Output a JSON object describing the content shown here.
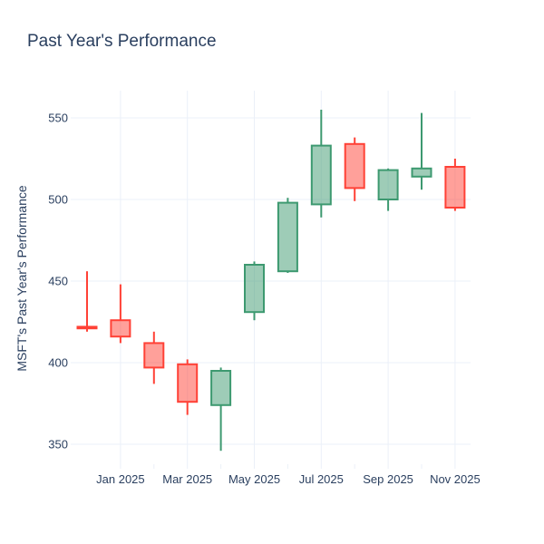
{
  "page": {
    "background_color": "#ffffff"
  },
  "chart_data": {
    "type": "candlestick",
    "title": "Past Year's Performance",
    "yaxis_title": "MSFT's Past Year's Performance",
    "xlabel": "",
    "ylabel": "MSFT's Past Year's Performance",
    "x_tick_labels": [
      "Jan 2025",
      "Mar 2025",
      "May 2025",
      "Jul 2025",
      "Sep 2025",
      "Nov 2025"
    ],
    "y_ticks": [
      350,
      400,
      450,
      500,
      550
    ],
    "ylim": [
      338,
      567
    ],
    "grid": true,
    "legend_position": "none",
    "colors": {
      "increasing": "#3D9970",
      "decreasing": "#FF4136",
      "grid": "#EBF0F8",
      "text": "#2a3f5f",
      "plot_background": "#ffffff"
    },
    "candles": [
      {
        "month": "Dec 2024",
        "open": 422,
        "high": 456,
        "low": 419,
        "close": 421
      },
      {
        "month": "Jan 2025",
        "open": 426,
        "high": 448,
        "low": 412,
        "close": 416
      },
      {
        "month": "Feb 2025",
        "open": 412,
        "high": 419,
        "low": 387,
        "close": 397
      },
      {
        "month": "Mar 2025",
        "open": 399,
        "high": 402,
        "low": 368,
        "close": 376
      },
      {
        "month": "Apr 2025",
        "open": 374,
        "high": 397,
        "low": 346,
        "close": 395
      },
      {
        "month": "May 2025",
        "open": 431,
        "high": 462,
        "low": 426,
        "close": 460
      },
      {
        "month": "Jun 2025",
        "open": 456,
        "high": 501,
        "low": 455,
        "close": 498
      },
      {
        "month": "Jul 2025",
        "open": 497,
        "high": 555,
        "low": 489,
        "close": 533
      },
      {
        "month": "Aug 2025",
        "open": 534,
        "high": 538,
        "low": 499,
        "close": 507
      },
      {
        "month": "Sep 2025",
        "open": 500,
        "high": 519,
        "low": 493,
        "close": 518
      },
      {
        "month": "Oct 2025",
        "open": 514,
        "high": 553,
        "low": 506,
        "close": 519
      },
      {
        "month": "Nov 2025",
        "open": 520,
        "high": 525,
        "low": 493,
        "close": 495
      }
    ]
  }
}
